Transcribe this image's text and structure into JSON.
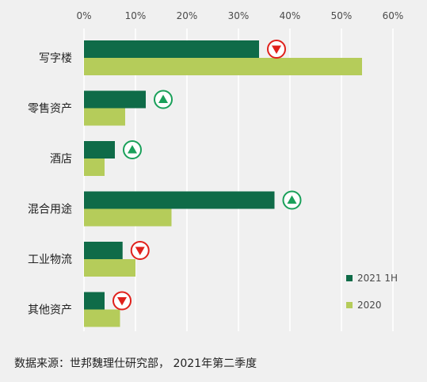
{
  "chart_data": {
    "type": "bar",
    "orientation": "horizontal",
    "categories": [
      "写字楼",
      "零售资产",
      "酒店",
      "混合用途",
      "工业物流",
      "其他资产"
    ],
    "x_ticks": [
      "0%",
      "10%",
      "20%",
      "30%",
      "40%",
      "50%",
      "60%"
    ],
    "xlim": [
      0,
      60
    ],
    "x_unit": "%",
    "grid": true,
    "legend_position": "bottom-right",
    "series": [
      {
        "name": "2021 1H",
        "values": [
          34,
          12,
          6,
          37,
          7.5,
          4
        ],
        "color": "#0f6b48"
      },
      {
        "name": "2020",
        "values": [
          54,
          8,
          4,
          17,
          10,
          7
        ],
        "color": "#b5cc5a"
      }
    ],
    "change_indicators": [
      "down",
      "up",
      "up",
      "up",
      "down",
      "down"
    ],
    "indicator_colors": {
      "up": "#1aa05a",
      "down": "#e0201b"
    },
    "source": "数据来源：世邦魏理仕研究部， 2021年第二季度"
  }
}
